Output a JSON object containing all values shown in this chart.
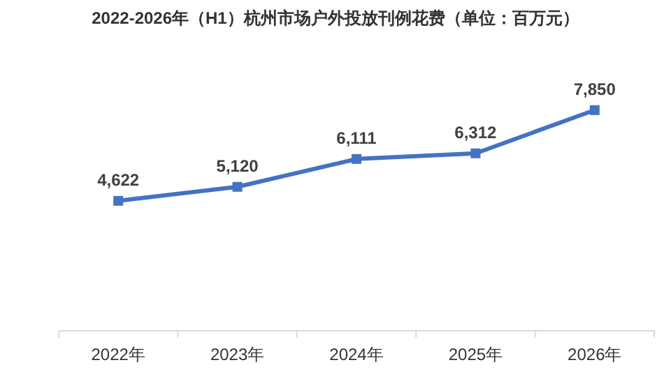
{
  "chart_data": {
    "type": "line",
    "title": "2022-2026年（H1）杭州市场户外投放刊例花费（单位：百万元）",
    "categories": [
      "2022年",
      "2023年",
      "2024年",
      "2025年",
      "2026年"
    ],
    "series": [
      {
        "color": "#4472c4",
        "values": [
          4622,
          5120,
          6111,
          6312,
          7850
        ],
        "value_labels": [
          "4,622",
          "5,120",
          "6,111",
          "6,312",
          "7,850"
        ]
      }
    ],
    "marker": "square",
    "line_style": "solid",
    "tick_labels": "x"
  }
}
